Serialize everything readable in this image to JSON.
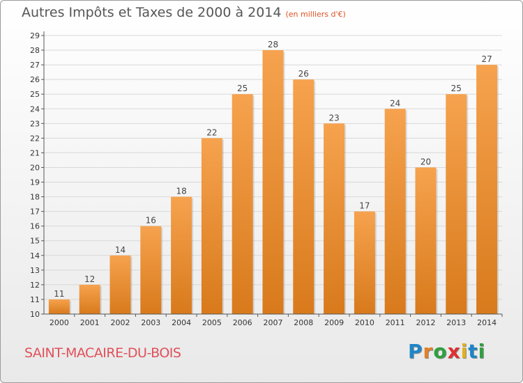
{
  "header": {
    "title": "Autres Impôts et Taxes de 2000 à 2014",
    "unit": "(en milliers d'€)"
  },
  "footer": {
    "commune": "SAINT-MACAIRE-DU-BOIS",
    "logo_letters": [
      "P",
      "r",
      "o",
      "x",
      "i",
      "t",
      "i"
    ],
    "logo_colors": [
      "#1e86c8",
      "#e0802a",
      "#2fa040",
      "#e03030",
      "#e0b020",
      "#1e86c8",
      "#2fa040"
    ]
  },
  "chart_data": {
    "type": "bar",
    "title": "Autres Impôts et Taxes de 2000 à 2014",
    "categories": [
      "2000",
      "2001",
      "2002",
      "2003",
      "2004",
      "2005",
      "2006",
      "2007",
      "2008",
      "2009",
      "2010",
      "2011",
      "2012",
      "2013",
      "2014"
    ],
    "values": [
      11,
      12,
      14,
      16,
      18,
      22,
      25,
      28,
      26,
      23,
      17,
      24,
      20,
      25,
      27
    ],
    "ylim": [
      10,
      29
    ],
    "yticks": [
      10,
      11,
      12,
      13,
      14,
      15,
      16,
      17,
      18,
      19,
      20,
      21,
      22,
      23,
      24,
      25,
      26,
      27,
      28,
      29
    ],
    "grid": true,
    "colors": {
      "bar_top": "#f6a24e",
      "bar_bottom": "#d87a1c",
      "grid": "#d8d8d8"
    }
  }
}
